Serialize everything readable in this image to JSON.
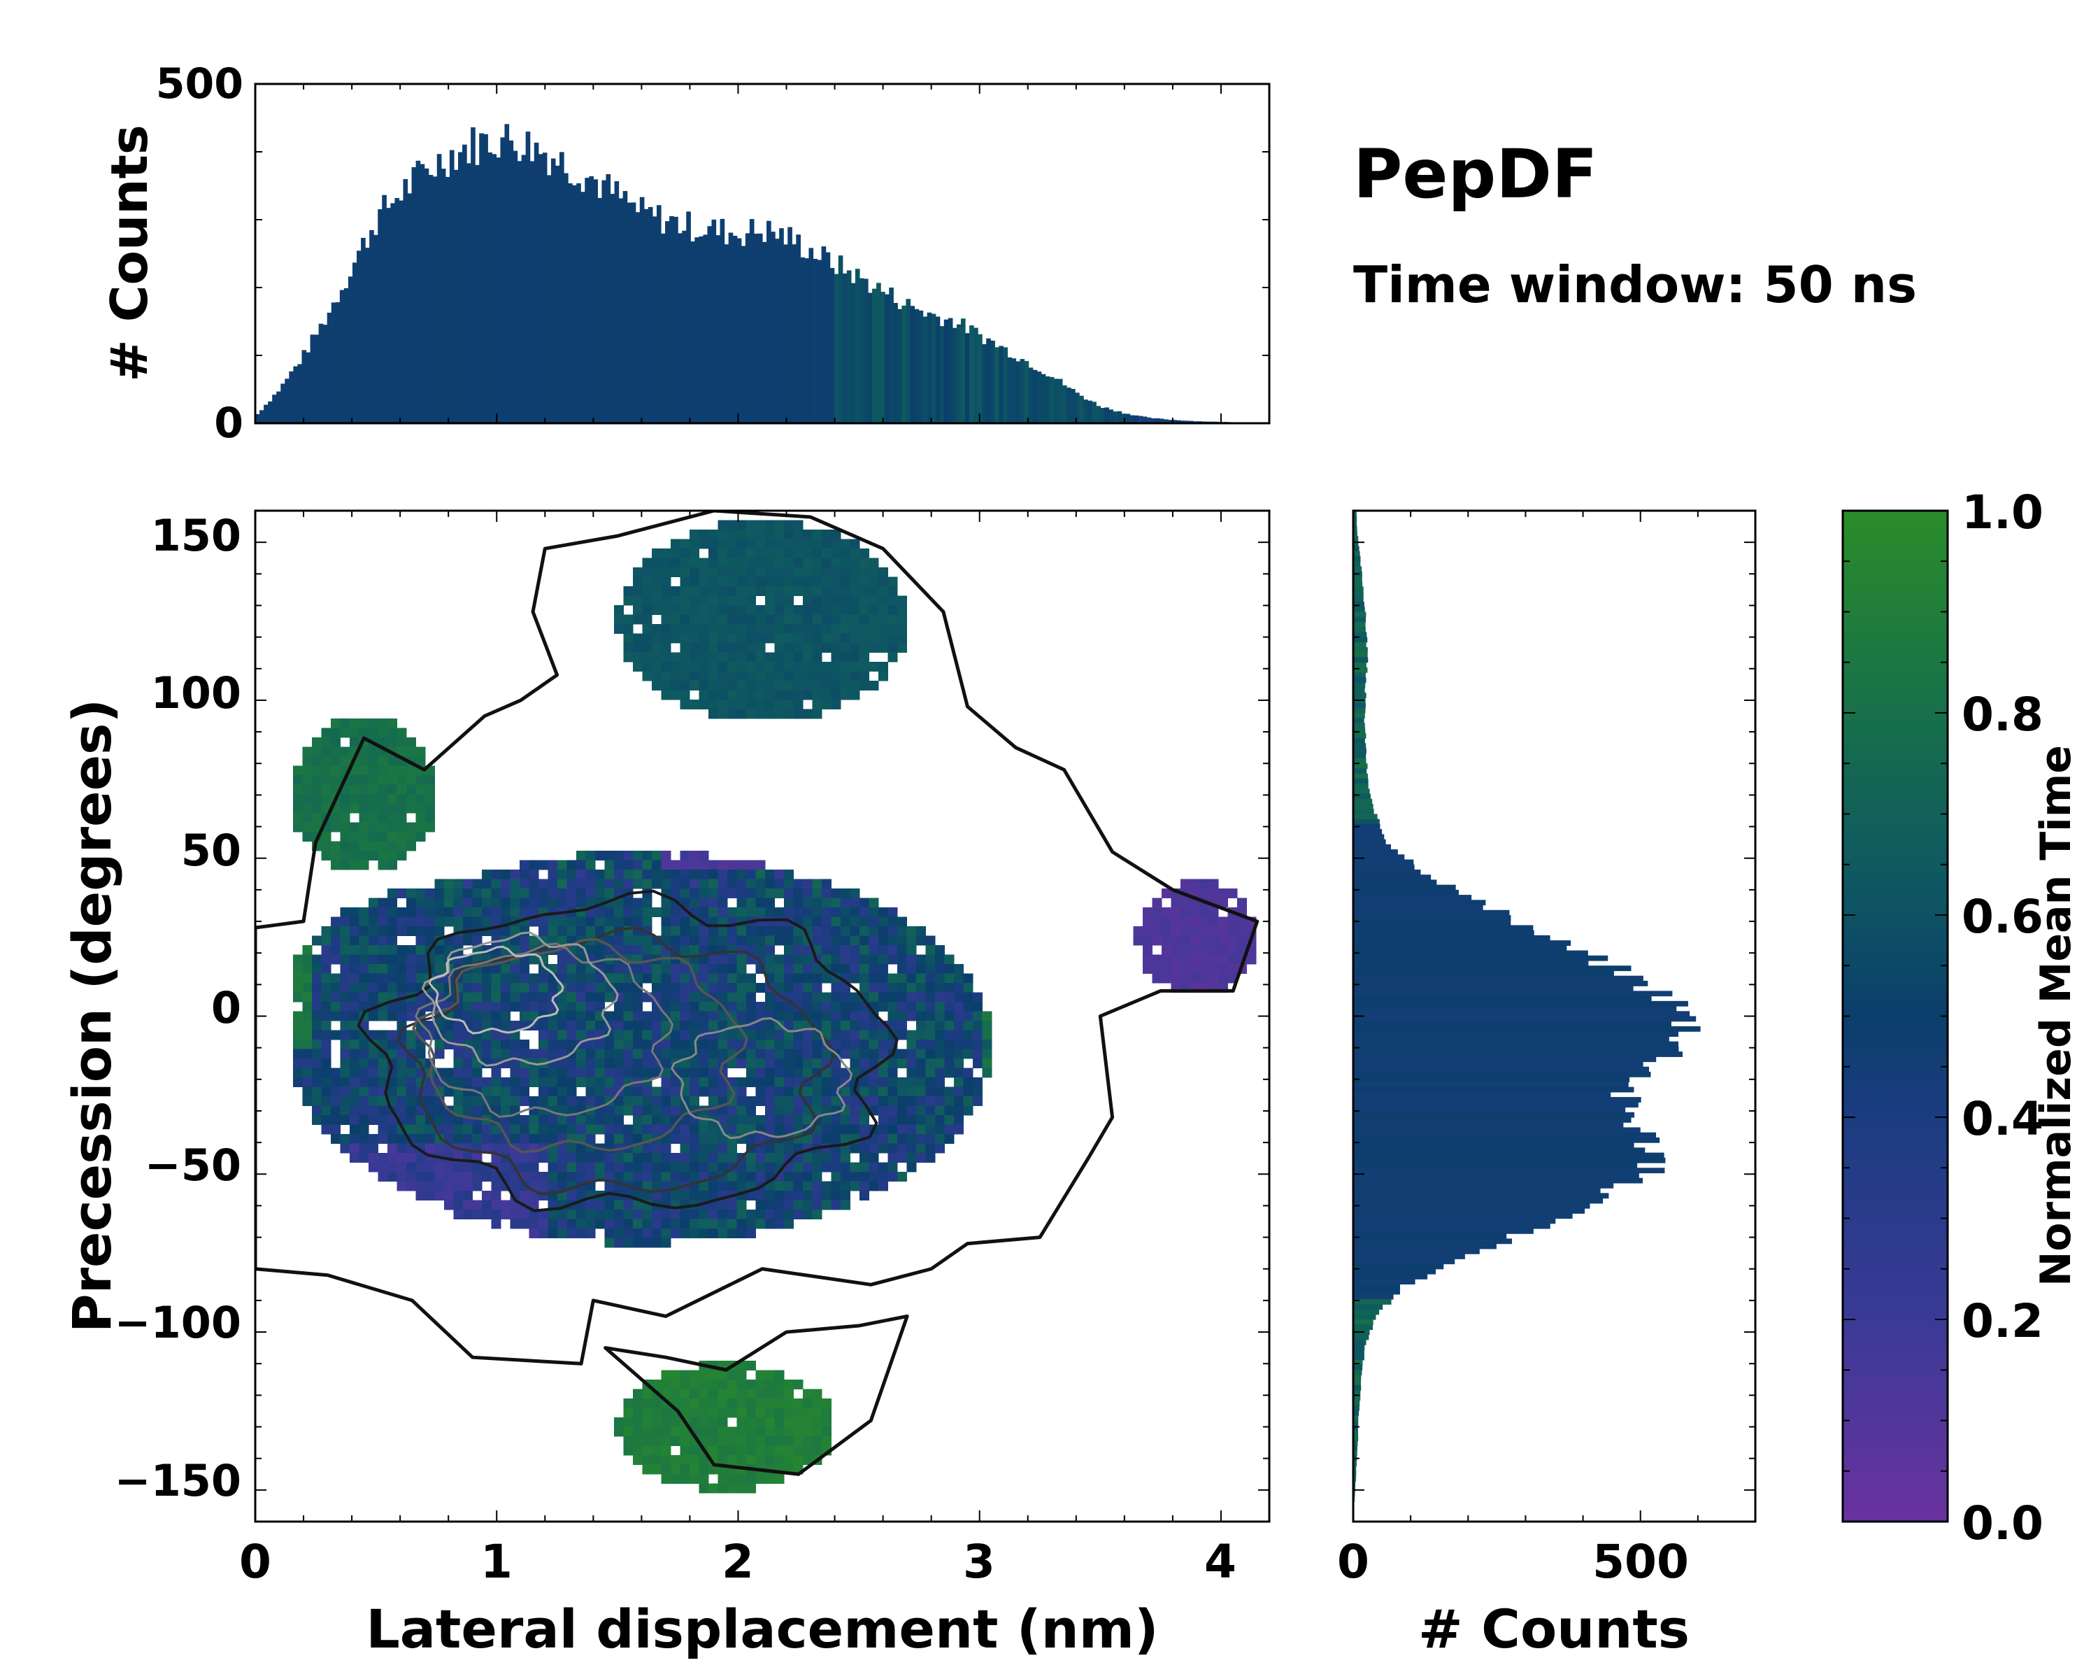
{
  "chart_data": {
    "title": "PepDF",
    "subtitle": "Time window: 50 ns",
    "colormap": {
      "label": "Normalized Mean Time",
      "range": [
        0.0,
        1.0
      ],
      "ticks": [
        "0.0",
        "0.2",
        "0.4",
        "0.6",
        "0.8",
        "1.0"
      ],
      "colors": [
        "#6a329f",
        "#2b3f8c",
        "#0c3f6e",
        "#0f5a60",
        "#1a7a3e",
        "#2a8a2a"
      ]
    },
    "top_histogram": {
      "type": "bar",
      "ylabel": "# Counts",
      "ylim": [
        0,
        500
      ],
      "yticks": [
        "0",
        "500"
      ],
      "xlim": [
        0,
        4.2
      ],
      "x": [
        0.0,
        0.1,
        0.2,
        0.3,
        0.4,
        0.5,
        0.6,
        0.7,
        0.8,
        0.9,
        1.0,
        1.1,
        1.2,
        1.3,
        1.4,
        1.5,
        1.6,
        1.7,
        1.8,
        1.9,
        2.0,
        2.1,
        2.2,
        2.3,
        2.4,
        2.5,
        2.6,
        2.7,
        2.8,
        2.9,
        3.0,
        3.1,
        3.2,
        3.3,
        3.4,
        3.5,
        3.6,
        3.7,
        3.8,
        3.9,
        4.0,
        4.1,
        4.2
      ],
      "counts": [
        10,
        50,
        100,
        160,
        230,
        300,
        340,
        370,
        395,
        410,
        420,
        415,
        400,
        380,
        360,
        335,
        310,
        300,
        290,
        285,
        280,
        285,
        275,
        255,
        235,
        215,
        195,
        175,
        160,
        150,
        130,
        110,
        90,
        70,
        45,
        25,
        15,
        8,
        5,
        3,
        2,
        1,
        0
      ]
    },
    "main_panel": {
      "type": "heatmap",
      "xlabel": "Lateral displacement (nm)",
      "ylabel": "Precession (degrees)",
      "xlim": [
        0,
        4.2
      ],
      "ylim": [
        -160,
        160
      ],
      "xticks": [
        "0",
        "1",
        "2",
        "3",
        "4"
      ],
      "yticks": [
        "−150",
        "−100",
        "−50",
        "0",
        "50",
        "100",
        "150"
      ],
      "contour_levels": 6
    },
    "right_histogram": {
      "type": "bar",
      "xlabel": "# Counts",
      "xlim": [
        0,
        700
      ],
      "xticks": [
        "0",
        "500"
      ],
      "y": [
        -145,
        -135,
        -125,
        -115,
        -105,
        -95,
        -85,
        -75,
        -65,
        -55,
        -45,
        -35,
        -25,
        -15,
        -5,
        5,
        15,
        25,
        35,
        45,
        55,
        65,
        75,
        85,
        95,
        105,
        115,
        125,
        135,
        145,
        155
      ],
      "counts": [
        5,
        8,
        10,
        14,
        20,
        40,
        90,
        210,
        350,
        460,
        540,
        500,
        470,
        540,
        600,
        560,
        460,
        340,
        230,
        130,
        60,
        35,
        25,
        22,
        20,
        22,
        25,
        22,
        18,
        12,
        6
      ]
    }
  }
}
